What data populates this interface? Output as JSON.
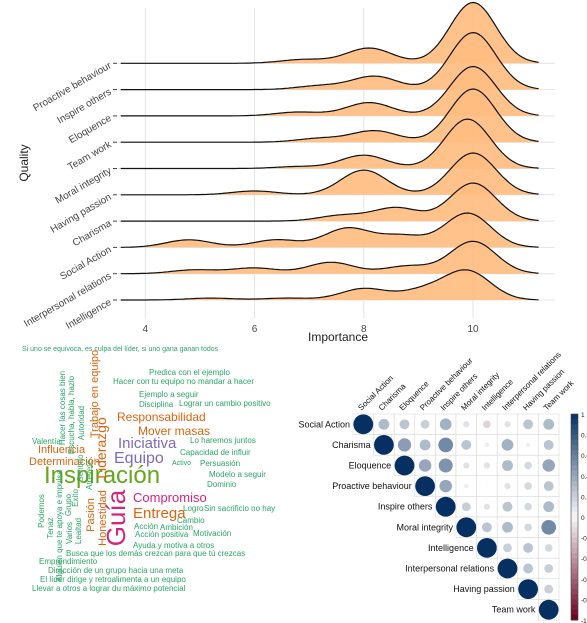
{
  "chart_data": [
    {
      "type": "area",
      "subtype": "ridgeline",
      "xlabel": "Importance",
      "ylabel": "Quality",
      "xlim": [
        3.5,
        11.5
      ],
      "xticks": [
        4,
        6,
        8,
        10
      ],
      "fill_color": "#ffbd80",
      "grid": true,
      "series": [
        {
          "name": "Intelligence",
          "peaks": [
            [
              5.2,
              0.05
            ],
            [
              6.6,
              0.05
            ],
            [
              8.0,
              0.3
            ],
            [
              9.1,
              0.25
            ],
            [
              9.9,
              0.75
            ]
          ]
        },
        {
          "name": "Interpersonal relations",
          "peaks": [
            [
              4.9,
              0.1
            ],
            [
              6.0,
              0.15
            ],
            [
              7.4,
              0.3
            ],
            [
              8.8,
              0.2
            ],
            [
              10.0,
              0.85
            ]
          ]
        },
        {
          "name": "Social Action",
          "peaks": [
            [
              4.8,
              0.2
            ],
            [
              6.4,
              0.2
            ],
            [
              7.7,
              0.5
            ],
            [
              8.7,
              0.3
            ],
            [
              9.9,
              0.9
            ]
          ]
        },
        {
          "name": "Charisma",
          "peaks": [
            [
              7.6,
              0.15
            ],
            [
              8.6,
              0.35
            ],
            [
              10.0,
              1.0
            ]
          ]
        },
        {
          "name": "Having passion",
          "peaks": [
            [
              6.0,
              0.1
            ],
            [
              8.0,
              0.65
            ],
            [
              10.0,
              1.1
            ]
          ]
        },
        {
          "name": "Moral integrity",
          "peaks": [
            [
              6.8,
              0.05
            ],
            [
              8.0,
              0.35
            ],
            [
              9.9,
              1.3
            ]
          ]
        },
        {
          "name": "Team work",
          "peaks": [
            [
              7.2,
              0.1
            ],
            [
              8.2,
              0.3
            ],
            [
              10.0,
              1.4
            ]
          ]
        },
        {
          "name": "Eloquence",
          "peaks": [
            [
              6.8,
              0.1
            ],
            [
              8.1,
              0.35
            ],
            [
              10.0,
              1.3
            ]
          ]
        },
        {
          "name": "Inspire others",
          "peaks": [
            [
              7.2,
              0.1
            ],
            [
              8.2,
              0.35
            ],
            [
              10.0,
              1.5
            ]
          ]
        },
        {
          "name": "Proactive behaviour",
          "peaks": [
            [
              6.9,
              0.1
            ],
            [
              8.1,
              0.4
            ],
            [
              10.0,
              1.6
            ]
          ]
        }
      ]
    },
    {
      "type": "other",
      "subtype": "wordcloud",
      "words": [
        {
          "text": "Si uno se equivoca, es culpa del líder, si uno gana ganan todos",
          "color": "#2aa566"
        },
        {
          "text": "Predica con el ejemplo",
          "color": "#2aa566"
        },
        {
          "text": "Hacer con tu equipo no mandar a hacer",
          "color": "#2aa566"
        },
        {
          "text": "Ejemplo a seguir",
          "color": "#2aa566"
        },
        {
          "text": "Lograr un cambio positivo",
          "color": "#2aa566"
        },
        {
          "text": "Disciplina",
          "color": "#2aa566"
        },
        {
          "text": "Responsabilidad",
          "color": "#d9650e"
        },
        {
          "text": "Mover masas",
          "color": "#d9650e"
        },
        {
          "text": "Iniciativa",
          "color": "#7c6bbb"
        },
        {
          "text": "Lo haremos juntos",
          "color": "#2aa566"
        },
        {
          "text": "Equipo",
          "color": "#7c6bbb"
        },
        {
          "text": "Capacidad de influir",
          "color": "#2aa566"
        },
        {
          "text": "Influencia",
          "color": "#d9650e"
        },
        {
          "text": "Determinación",
          "color": "#d9650e"
        },
        {
          "text": "Persuasión",
          "color": "#2aa566"
        },
        {
          "text": "Inspiración",
          "color": "#66a71a"
        },
        {
          "text": "Activo",
          "color": "#2aa566"
        },
        {
          "text": "Modelo a seguir",
          "color": "#2aa566"
        },
        {
          "text": "Valentía",
          "color": "#2aa566"
        },
        {
          "text": "Dominio",
          "color": "#2aa566"
        },
        {
          "text": "Compromiso",
          "color": "#d4257a"
        },
        {
          "text": "Guía",
          "color": "#d4257a"
        },
        {
          "text": "Entrega",
          "color": "#d9650e"
        },
        {
          "text": "Logro",
          "color": "#2aa566"
        },
        {
          "text": "Sin sacrificio no hay",
          "color": "#2aa566"
        },
        {
          "text": "Cambio",
          "color": "#2aa566"
        },
        {
          "text": "Acción",
          "color": "#2aa566"
        },
        {
          "text": "Ambición",
          "color": "#2aa566"
        },
        {
          "text": "Acción positiva",
          "color": "#2aa566"
        },
        {
          "text": "Motivación",
          "color": "#2aa566"
        },
        {
          "text": "Ayuda y motiva a otros",
          "color": "#2aa566"
        },
        {
          "text": "Busca que los demás crezcan para que tú crezcas",
          "color": "#2aa566"
        },
        {
          "text": "Emprendimiento",
          "color": "#2aa566"
        },
        {
          "text": "Dirección de un grupo hacia una meta",
          "color": "#2aa566"
        },
        {
          "text": "El líder dirige y retroalimenta a un equipo",
          "color": "#2aa566"
        },
        {
          "text": "Llevar a otros a lograr du máximo potencial",
          "color": "#2aa566"
        },
        {
          "text": "Trabajo en equipo",
          "color": "#d9650e"
        },
        {
          "text": "Liderazgo",
          "color": "#d9650e"
        },
        {
          "text": "Pasión",
          "color": "#d9650e"
        },
        {
          "text": "Honestidad",
          "color": "#d9650e"
        },
        {
          "text": "Hacer las cosas bien",
          "color": "#2aa566"
        },
        {
          "text": "Escucha, habla, hazlo",
          "color": "#2aa566"
        },
        {
          "text": "Autoridad",
          "color": "#2aa566"
        },
        {
          "text": "Podemos",
          "color": "#2aa566"
        },
        {
          "text": "Tenaz",
          "color": "#2aa566"
        },
        {
          "text": "Alguien que te apoya e impulsa",
          "color": "#2aa566"
        },
        {
          "text": "Grupo",
          "color": "#2aa566"
        },
        {
          "text": "Éxito",
          "color": "#2aa566"
        },
        {
          "text": "Lealtad",
          "color": "#2aa566"
        },
        {
          "text": "Varios",
          "color": "#2aa566"
        },
        {
          "text": "Atrévete",
          "color": "#2aa566"
        },
        {
          "text": "Sentido",
          "color": "#2aa566"
        }
      ]
    },
    {
      "type": "heatmap",
      "subtype": "correlogram-upper",
      "variables": [
        "Social Action",
        "Charisma",
        "Eloquence",
        "Proactive behaviour",
        "Inspire others",
        "Moral integrity",
        "Intelligence",
        "Interpersonal relations",
        "Having passion",
        "Team work"
      ],
      "legend_ticks": [
        "1",
        "0.8",
        "0.6",
        "0.4",
        "0.2",
        "0",
        "-0.2",
        "-0.4",
        "-0.6",
        "-0.8",
        "-1"
      ],
      "colors": {
        "negative": "#67001f",
        "zero": "#f7f7f7",
        "positive": "#053061"
      },
      "matrix": [
        [
          1.0,
          0.3,
          0.25,
          0.2,
          0.35,
          0.1,
          -0.15,
          0.1,
          0.25,
          0.3
        ],
        [
          0.3,
          1.0,
          0.45,
          0.3,
          0.55,
          0.25,
          0.05,
          0.35,
          0.05,
          0.25
        ],
        [
          0.25,
          0.45,
          1.0,
          0.4,
          0.5,
          0.1,
          0.1,
          0.3,
          0.15,
          0.4
        ],
        [
          0.2,
          0.3,
          0.4,
          1.0,
          0.4,
          0.05,
          0.0,
          0.1,
          0.15,
          0.25
        ],
        [
          0.35,
          0.55,
          0.5,
          0.4,
          1.0,
          0.2,
          0.1,
          0.25,
          0.15,
          0.3
        ],
        [
          0.1,
          0.25,
          0.1,
          0.05,
          0.2,
          1.0,
          0.25,
          0.3,
          0.15,
          0.55
        ],
        [
          -0.15,
          0.05,
          0.1,
          0.0,
          0.1,
          0.25,
          1.0,
          0.2,
          0.25,
          0.15
        ],
        [
          0.1,
          0.35,
          0.3,
          0.1,
          0.25,
          0.3,
          0.2,
          1.0,
          0.25,
          0.2
        ],
        [
          0.25,
          0.05,
          0.15,
          0.15,
          0.15,
          0.15,
          0.25,
          0.25,
          1.0,
          0.2
        ],
        [
          0.3,
          0.25,
          0.4,
          0.25,
          0.3,
          0.55,
          0.15,
          0.2,
          0.2,
          1.0
        ]
      ]
    }
  ]
}
